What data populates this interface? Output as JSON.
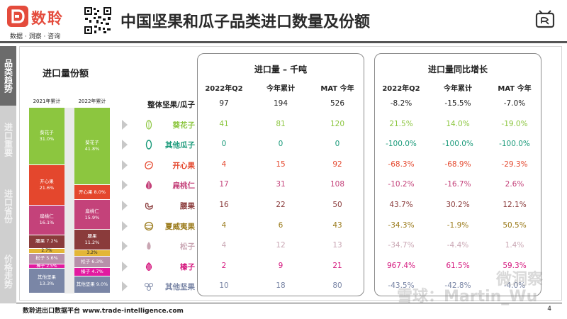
{
  "header": {
    "brand_name": "数聆",
    "brand_tagline": "数据 · 洞察 · 咨询",
    "title": "中国坚果和瓜子品类进口数量及份额"
  },
  "sidebar": {
    "items": [
      {
        "label": "品类趋势",
        "active": true
      },
      {
        "label": "进口重要",
        "active": false
      },
      {
        "label": "进口省份",
        "active": false
      },
      {
        "label": "价格走势",
        "active": false
      }
    ]
  },
  "share": {
    "title": "进口量份额",
    "columns": [
      "2021年累计",
      "2022年累计"
    ],
    "bars": [
      [
        {
          "name": "葵花子",
          "pct": "31.0%",
          "value": 31.0,
          "color": "#8cc63f"
        },
        {
          "name": "开心果",
          "pct": "21.6%",
          "value": 21.6,
          "color": "#e4472d"
        },
        {
          "name": "扁桃仁",
          "pct": "16.1%",
          "value": 16.1,
          "color": "#c4427a"
        },
        {
          "name": "腰果",
          "pct": "7.2%",
          "value": 7.2,
          "color": "#8a3b3b"
        },
        {
          "name": "",
          "pct": "2.7%",
          "value": 2.7,
          "color": "#e3b637"
        },
        {
          "name": "松子",
          "pct": "5.6%",
          "value": 5.6,
          "color": "#b790aa"
        },
        {
          "name": "榛子",
          "pct": "2.5%",
          "value": 2.5,
          "color": "#e21aa0"
        },
        {
          "name": "其他坚果",
          "pct": "13.3%",
          "value": 13.3,
          "color": "#7a86a6"
        }
      ],
      [
        {
          "name": "葵花子",
          "pct": "41.8%",
          "value": 41.8,
          "color": "#8cc63f"
        },
        {
          "name": "开心果",
          "pct": "8.0%",
          "value": 8.0,
          "color": "#e4472d"
        },
        {
          "name": "扁桃仁",
          "pct": "15.9%",
          "value": 15.9,
          "color": "#c4427a"
        },
        {
          "name": "腰果",
          "pct": "11.2%",
          "value": 11.2,
          "color": "#8a3b3b"
        },
        {
          "name": "",
          "pct": "3.2%",
          "value": 3.2,
          "color": "#e3b637"
        },
        {
          "name": "松子",
          "pct": "6.3%",
          "value": 6.3,
          "color": "#b790aa"
        },
        {
          "name": "榛子",
          "pct": "4.7%",
          "value": 4.7,
          "color": "#e21aa0"
        },
        {
          "name": "其他坚果",
          "pct": "9.0%",
          "value": 9.0,
          "color": "#7a86a6"
        }
      ]
    ]
  },
  "volume": {
    "title": "进口量 – 千吨",
    "columns": [
      "2022年Q2",
      "今年累计",
      "MAT 今年"
    ]
  },
  "growth": {
    "title": "进口量同比增长",
    "columns": [
      "2022年Q2",
      "今年累计",
      "MAT 今年"
    ]
  },
  "rows": [
    {
      "label": "整体坚果/瓜子",
      "icon": "",
      "color": "#222222",
      "volume": [
        "97",
        "194",
        "526"
      ],
      "growth": [
        "-8.2%",
        "-15.5%",
        "-7.0%"
      ],
      "growth_colors": [
        "#222222",
        "#222222",
        "#222222"
      ]
    },
    {
      "label": "葵花子",
      "icon": "sunflower-seed-icon",
      "color": "#8cc63f",
      "volume": [
        "41",
        "81",
        "120"
      ],
      "growth": [
        "21.5%",
        "14.0%",
        "-19.0%"
      ],
      "growth_colors": [
        "#8cc63f",
        "#8cc63f",
        "#8cc63f"
      ]
    },
    {
      "label": "其他瓜子",
      "icon": "melon-seed-icon",
      "color": "#1a9a7a",
      "volume": [
        "0",
        "0",
        "0"
      ],
      "growth": [
        "-100.0%",
        "-100.0%",
        "-100.0%"
      ],
      "growth_colors": [
        "#1a9a7a",
        "#1a9a7a",
        "#1a9a7a"
      ]
    },
    {
      "label": "开心果",
      "icon": "pistachio-icon",
      "color": "#e4472d",
      "volume": [
        "4",
        "15",
        "92"
      ],
      "growth": [
        "-68.3%",
        "-68.9%",
        "-29.3%"
      ],
      "growth_colors": [
        "#e4472d",
        "#e4472d",
        "#e4472d"
      ]
    },
    {
      "label": "扁桃仁",
      "icon": "almond-icon",
      "color": "#c4427a",
      "volume": [
        "17",
        "31",
        "108"
      ],
      "growth": [
        "-10.2%",
        "-16.7%",
        "2.6%"
      ],
      "growth_colors": [
        "#c4427a",
        "#c4427a",
        "#c4427a"
      ]
    },
    {
      "label": "腰果",
      "icon": "cashew-icon",
      "color": "#8a3b3b",
      "volume": [
        "16",
        "22",
        "50"
      ],
      "growth": [
        "43.7%",
        "30.2%",
        "12.1%"
      ],
      "growth_colors": [
        "#8a3b3b",
        "#8a3b3b",
        "#8a3b3b"
      ]
    },
    {
      "label": "夏威夷果",
      "icon": "macadamia-icon",
      "color": "#9a7a1a",
      "volume": [
        "4",
        "6",
        "43"
      ],
      "growth": [
        "-34.3%",
        "-1.9%",
        "50.5%"
      ],
      "growth_colors": [
        "#9a7a1a",
        "#9a7a1a",
        "#9a7a1a"
      ]
    },
    {
      "label": "松子",
      "icon": "pine-nut-icon",
      "color": "#c9a6b3",
      "volume": [
        "4",
        "12",
        "13"
      ],
      "growth": [
        "-34.7%",
        "-4.4%",
        "1.4%"
      ],
      "growth_colors": [
        "#c9a6b3",
        "#c9a6b3",
        "#c9a6b3"
      ]
    },
    {
      "label": "榛子",
      "icon": "hazelnut-icon",
      "color": "#d5197f",
      "volume": [
        "2",
        "9",
        "21"
      ],
      "growth": [
        "967.4%",
        "61.5%",
        "59.3%"
      ],
      "growth_colors": [
        "#d5197f",
        "#d5197f",
        "#d5197f"
      ]
    },
    {
      "label": "其他坚果",
      "icon": "mixed-nuts-icon",
      "color": "#7a86a6",
      "volume": [
        "10",
        "18",
        "80"
      ],
      "growth": [
        "-43.5%",
        "-42.8%",
        "-4.0%"
      ],
      "growth_colors": [
        "#7a86a6",
        "#7a86a6",
        "#7a86a6"
      ]
    }
  ],
  "footer": {
    "text": "数聆进出口数据平台 www.trade-intelligence.com",
    "page": "4"
  },
  "watermarks": {
    "left": "雪球：Martin_Wu",
    "right": "微洞察"
  }
}
